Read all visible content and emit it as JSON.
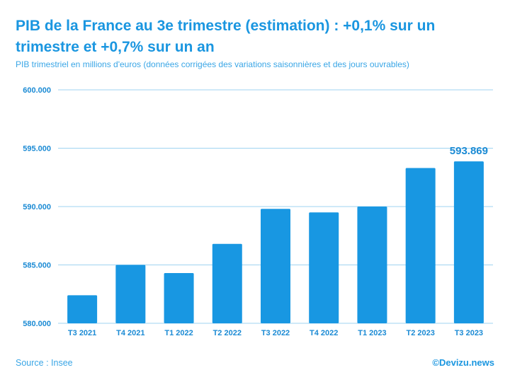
{
  "header": {
    "title": "PIB de la France au 3e trimestre (estimation) : +0,1% sur un trimestre et +0,7% sur un an",
    "subtitle": "PIB trimestriel en millions d'euros (données corrigées des variations saisonnières et des jours ouvrables)"
  },
  "footer": {
    "source": "Source : Insee",
    "credit": "©Devizu.news"
  },
  "colors": {
    "bar": "#1897e2",
    "grid": "#9fd3f1",
    "tick": "#1a8ad4",
    "value_label": "#1a8ad4"
  },
  "chart_data": {
    "type": "bar",
    "title": "PIB de la France au 3e trimestre (estimation) : +0,1% sur un trimestre et +0,7% sur un an",
    "subtitle": "PIB trimestriel en millions d'euros (données corrigées des variations saisonnières et des jours ouvrables)",
    "xlabel": "",
    "ylabel": "",
    "categories": [
      "T3 2021",
      "T4 2021",
      "T1 2022",
      "T2 2022",
      "T3 2022",
      "T4 2022",
      "T1 2023",
      "T2 2023",
      "T3 2023"
    ],
    "values": [
      582400,
      585000,
      584300,
      586800,
      589800,
      589500,
      590000,
      593300,
      593869
    ],
    "ylim": [
      580000,
      600000
    ],
    "yticks": [
      580000,
      585000,
      590000,
      595000,
      600000
    ],
    "ytick_labels": [
      "580.000",
      "585.000",
      "590.000",
      "595.000",
      "600.000"
    ],
    "grid": true,
    "legend": "none",
    "annotations": [
      {
        "category": "T3 2023",
        "text": "593.869"
      }
    ]
  }
}
